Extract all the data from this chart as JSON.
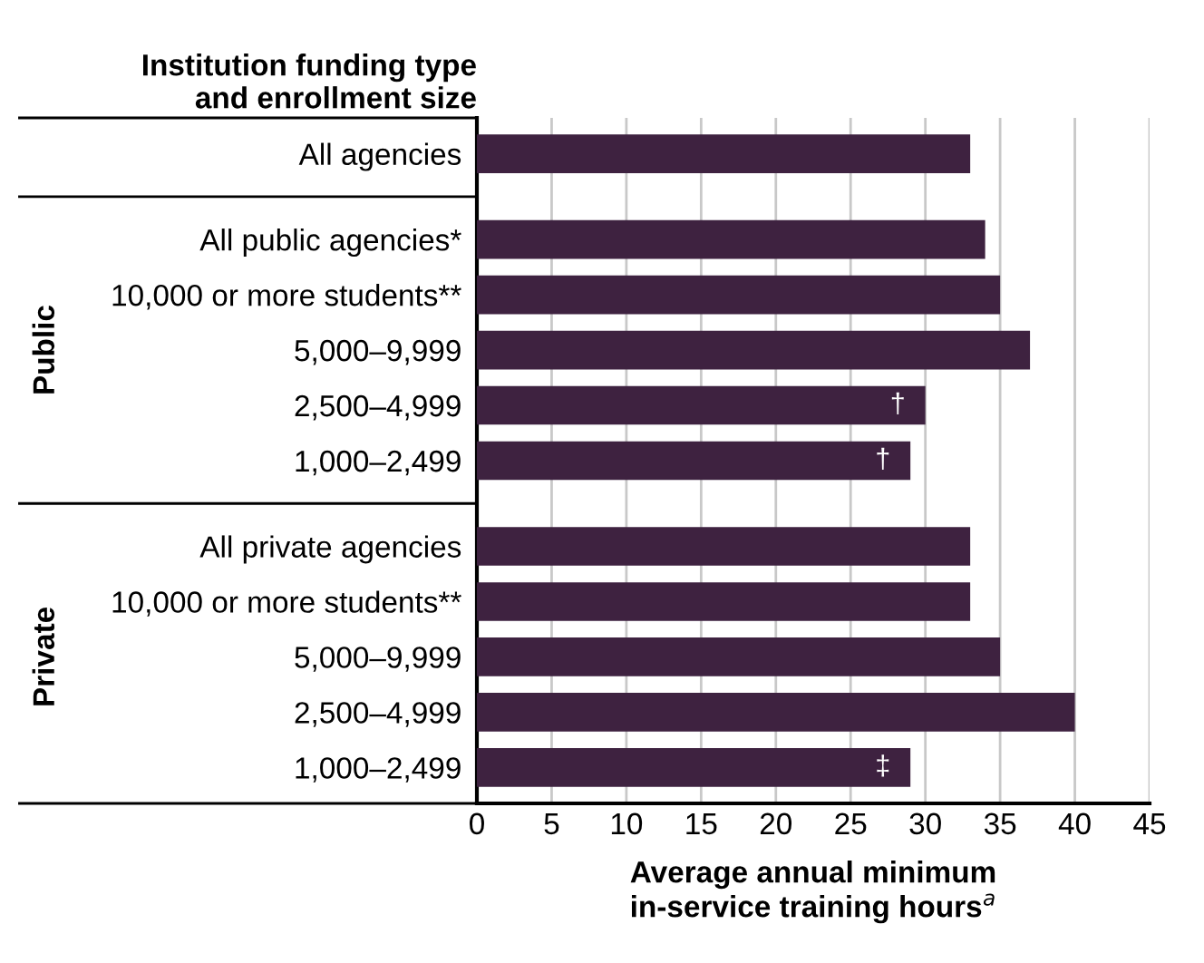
{
  "chart_data": {
    "type": "bar",
    "orientation": "horizontal",
    "ylabel": "Institution funding type\nand enrollment size",
    "xlabel": "Average annual minimum\nin-service training hours$^{a}$",
    "categories": [
      "All agencies",
      "All public agencies*",
      "10,000 or more students**",
      "5,000–9,999",
      "2,500–4,999",
      "1,000–2,499",
      "All private agencies",
      "10,000 or more students**",
      "5,000–9,999",
      "2,500–4,999",
      "1,000–2,499"
    ],
    "values": [
      33,
      34,
      35,
      37,
      30,
      29,
      33,
      33,
      35,
      40,
      29
    ],
    "value_labels": [
      null,
      null,
      null,
      null,
      "†",
      "†",
      null,
      null,
      null,
      null,
      "‡"
    ],
    "color": "#3e2240",
    "annotations": [
      "Public",
      "Private"
    ],
    "xlim": [
      0,
      45
    ],
    "xticks": [
      0,
      5,
      10,
      15,
      20,
      25,
      30,
      35,
      40,
      45
    ],
    "grid": "x",
    "legend": false
  }
}
